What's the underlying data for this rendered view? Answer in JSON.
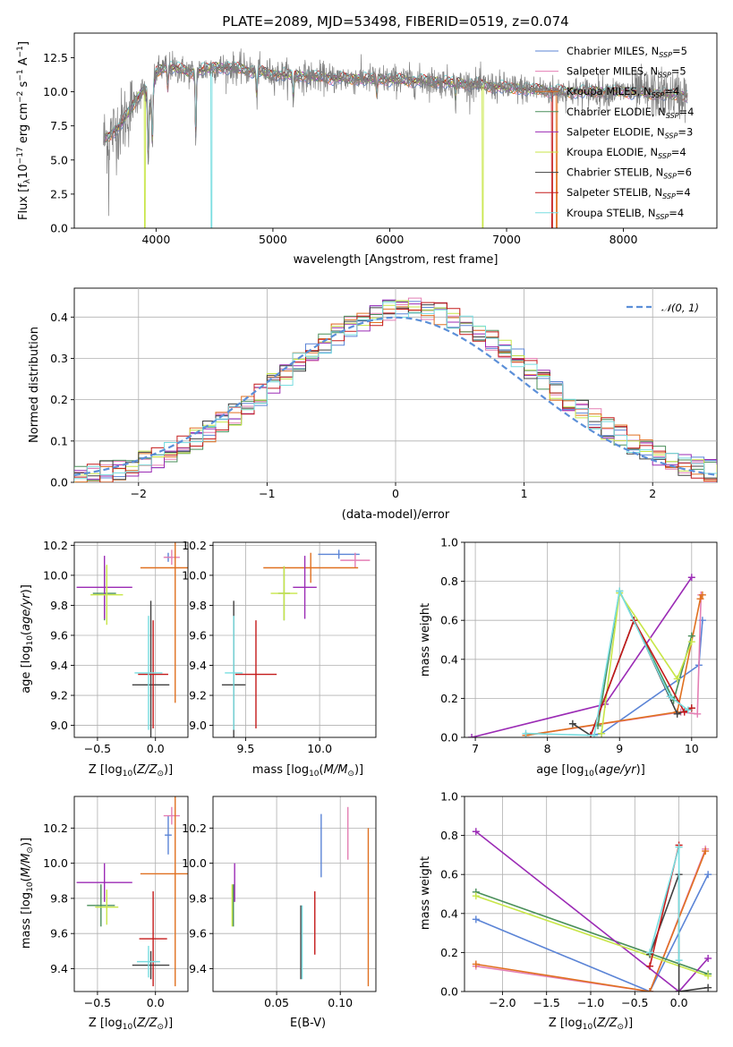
{
  "colors": {
    "chabrier_miles": "#5b84d6",
    "salpeter_miles": "#e47fb4",
    "kroupa_miles": "#e07020",
    "chabrier_elodie": "#4a8f5a",
    "salpeter_elodie": "#9b2bb5",
    "kroupa_elodie": "#c8e648",
    "chabrier_stelib": "#404040",
    "salpeter_stelib": "#c41a1a",
    "kroupa_stelib": "#78dde0",
    "data": "#7f7f7f",
    "normal": "#5b8fd8"
  },
  "chart_data": [
    {
      "type": "line",
      "title": "PLATE=2089, MJD=53498, FIBERID=0519, z=0.074",
      "xlabel": "wavelength [Angstrom, rest frame]",
      "ylabel": "Flux [f_λ 10^-17 erg cm^-2 s^-1 A^-1]",
      "xlim": [
        3300,
        8800
      ],
      "ylim": [
        0,
        14.3
      ],
      "xticks": [
        4000,
        5000,
        6000,
        7000,
        8000
      ],
      "yticks": [
        0.0,
        2.5,
        5.0,
        7.5,
        10.0,
        12.5
      ],
      "legend_position": "top-right",
      "series": [
        {
          "name": "Chabrier MILES, N_SSP=5",
          "key": "chabrier_miles"
        },
        {
          "name": "Salpeter MILES, N_SSP=5",
          "key": "salpeter_miles"
        },
        {
          "name": "Kroupa MILES, N_SSP=4",
          "key": "kroupa_miles"
        },
        {
          "name": "Chabrier ELODIE, N_SSP=4",
          "key": "chabrier_elodie"
        },
        {
          "name": "Salpeter ELODIE, N_SSP=3",
          "key": "salpeter_elodie"
        },
        {
          "name": "Kroupa ELODIE, N_SSP=4",
          "key": "kroupa_elodie"
        },
        {
          "name": "Chabrier STELIB, N_SSP=6",
          "key": "chabrier_stelib"
        },
        {
          "name": "Salpeter STELIB, N_SSP=4",
          "key": "salpeter_stelib"
        },
        {
          "name": "Kroupa STELIB, N_SSP=4",
          "key": "kroupa_stelib"
        }
      ],
      "spectrum_profile": {
        "x": [
          3550,
          3600,
          3700,
          3800,
          3900,
          3950,
          4000,
          4100,
          4300,
          4500,
          4700,
          5000,
          5500,
          6000,
          6500,
          7000,
          7500,
          8000,
          8400,
          8550
        ],
        "y": [
          6.5,
          6.8,
          7.6,
          9.0,
          10.3,
          9.0,
          11.4,
          11.9,
          11.4,
          11.8,
          11.7,
          11.3,
          11.0,
          10.9,
          10.7,
          10.3,
          10.0,
          10.0,
          9.8,
          9.7
        ]
      },
      "absorption_lines": [
        {
          "x": 3933,
          "drop": 5.0
        },
        {
          "x": 3968,
          "drop": 4.0
        },
        {
          "x": 4100,
          "drop": 1.8
        },
        {
          "x": 4340,
          "drop": 5.2
        },
        {
          "x": 4861,
          "drop": 2.0
        },
        {
          "x": 5175,
          "drop": 1.8
        },
        {
          "x": 5890,
          "drop": 1.2
        },
        {
          "x": 6563,
          "drop": 1.2
        }
      ],
      "model_dropouts": [
        {
          "x": 3905,
          "key": "kroupa_elodie"
        },
        {
          "x": 4475,
          "key": "kroupa_stelib"
        },
        {
          "x": 6795,
          "key": "kroupa_elodie"
        },
        {
          "x": 7390,
          "key": "salpeter_stelib"
        },
        {
          "x": 7430,
          "key": "kroupa_miles"
        }
      ]
    },
    {
      "type": "histogram",
      "xlabel": "(data-model)/error",
      "ylabel": "Normed distribution",
      "xlim": [
        -2.5,
        2.5
      ],
      "ylim": [
        0,
        0.47
      ],
      "xticks": [
        -2,
        -1,
        0,
        1,
        2
      ],
      "yticks": [
        0.0,
        0.1,
        0.2,
        0.3,
        0.4
      ],
      "bin_width": 0.1,
      "legend": "N(0,1)",
      "legend_position": "top-right"
    },
    {
      "type": "errorbar",
      "xlabel": "Z [log10(Z/Z_sun)]",
      "ylabel": "age [log10(age/yr)]",
      "xlim": [
        -0.7,
        0.28
      ],
      "ylim": [
        8.92,
        10.22
      ],
      "xticks": [
        -0.5,
        0.0
      ],
      "yticks": [
        9.0,
        9.2,
        9.4,
        9.6,
        9.8,
        10.0,
        10.2
      ],
      "points": [
        {
          "key": "chabrier_miles",
          "x": 0.11,
          "xerr": 0.03,
          "y": 10.12,
          "yerr": 0.03
        },
        {
          "key": "salpeter_miles",
          "x": 0.14,
          "xerr": 0.07,
          "y": 10.12,
          "yerr": 0.05
        },
        {
          "key": "kroupa_miles",
          "x": 0.17,
          "xerr": 0.3,
          "y": 10.05,
          "yerr": 0.9
        },
        {
          "key": "chabrier_elodie",
          "x": -0.44,
          "xerr": 0.1,
          "y": 9.88,
          "yerr": 0.18
        },
        {
          "key": "salpeter_elodie",
          "x": -0.44,
          "xerr": 0.24,
          "y": 9.92,
          "yerr": 0.21
        },
        {
          "key": "kroupa_elodie",
          "x": -0.42,
          "xerr": 0.14,
          "y": 9.87,
          "yerr": 0.2
        },
        {
          "key": "chabrier_stelib",
          "x": -0.04,
          "xerr": 0.16,
          "y": 9.27,
          "yerr": 0.56
        },
        {
          "key": "salpeter_stelib",
          "x": -0.02,
          "xerr": 0.13,
          "y": 9.34,
          "yerr": 0.36
        },
        {
          "key": "kroupa_stelib",
          "x": -0.06,
          "xerr": 0.12,
          "y": 9.35,
          "yerr": 0.38
        }
      ]
    },
    {
      "type": "errorbar",
      "xlabel": "mass [log10(M/M_sun)]",
      "ylabel": "",
      "xlim": [
        9.28,
        10.38
      ],
      "ylim": [
        8.92,
        10.22
      ],
      "xticks": [
        9.5,
        10.0
      ],
      "yticks": [
        9.0,
        9.2,
        9.4,
        9.6,
        9.8,
        10.0,
        10.2
      ],
      "points": [
        {
          "key": "chabrier_miles",
          "x": 10.13,
          "xerr": 0.14,
          "y": 10.14,
          "yerr": 0.03
        },
        {
          "key": "salpeter_miles",
          "x": 10.24,
          "xerr": 0.1,
          "y": 10.1,
          "yerr": 0.05
        },
        {
          "key": "kroupa_miles",
          "x": 9.94,
          "xerr": 0.32,
          "y": 10.05,
          "yerr": 0.1
        },
        {
          "key": "chabrier_elodie",
          "x": 9.76,
          "xerr": 0.04,
          "y": 9.88,
          "yerr": 0.18
        },
        {
          "key": "salpeter_elodie",
          "x": 9.9,
          "xerr": 0.08,
          "y": 9.92,
          "yerr": 0.21
        },
        {
          "key": "kroupa_elodie",
          "x": 9.76,
          "xerr": 0.09,
          "y": 9.88,
          "yerr": 0.18
        },
        {
          "key": "chabrier_stelib",
          "x": 9.42,
          "xerr": 0.08,
          "y": 9.27,
          "yerr": 0.56
        },
        {
          "key": "salpeter_stelib",
          "x": 9.57,
          "xerr": 0.14,
          "y": 9.34,
          "yerr": 0.36
        },
        {
          "key": "kroupa_stelib",
          "x": 9.42,
          "xerr": 0.06,
          "y": 9.35,
          "yerr": 0.38
        }
      ]
    },
    {
      "type": "line",
      "xlabel": "age [log10(age/yr)]",
      "ylabel": "mass weight",
      "xlim": [
        6.85,
        10.35
      ],
      "ylim": [
        0,
        1.0
      ],
      "xticks": [
        7,
        8,
        9,
        10
      ],
      "yticks": [
        0.0,
        0.2,
        0.4,
        0.6,
        0.8,
        1.0
      ],
      "grid": true,
      "series": [
        {
          "key": "chabrier_miles",
          "x": [
            8.6,
            8.75,
            10.1,
            10.15
          ],
          "y": [
            0.01,
            0.02,
            0.37,
            0.6
          ]
        },
        {
          "key": "salpeter_miles",
          "x": [
            7.7,
            9.85,
            10.08,
            10.13
          ],
          "y": [
            0.01,
            0.13,
            0.12,
            0.73
          ]
        },
        {
          "key": "kroupa_miles",
          "x": [
            7.7,
            9.8,
            10.12,
            10.15
          ],
          "y": [
            0.01,
            0.13,
            0.71,
            0.73
          ]
        },
        {
          "key": "chabrier_elodie",
          "x": [
            8.7,
            9.0,
            9.75,
            10.0
          ],
          "y": [
            0.06,
            0.75,
            0.19,
            0.52
          ]
        },
        {
          "key": "salpeter_elodie",
          "x": [
            6.95,
            8.8,
            10.0
          ],
          "y": [
            0.0,
            0.17,
            0.82
          ]
        },
        {
          "key": "kroupa_elodie",
          "x": [
            8.75,
            9.0,
            9.8,
            10.0
          ],
          "y": [
            0.02,
            0.74,
            0.3,
            0.49
          ]
        },
        {
          "key": "chabrier_stelib",
          "x": [
            8.35,
            8.6,
            9.2,
            9.8,
            10.0
          ],
          "y": [
            0.07,
            0.01,
            0.6,
            0.12,
            0.15
          ]
        },
        {
          "key": "salpeter_stelib",
          "x": [
            8.6,
            9.2,
            9.9,
            10.0
          ],
          "y": [
            0.01,
            0.6,
            0.13,
            0.15
          ]
        },
        {
          "key": "kroupa_stelib",
          "x": [
            7.7,
            8.65,
            9.0,
            9.7,
            9.95
          ],
          "y": [
            0.02,
            0.01,
            0.75,
            0.21,
            0.14
          ]
        }
      ]
    },
    {
      "type": "errorbar",
      "xlabel": "Z [log10(Z/Z_sun)]",
      "ylabel": "mass [log10(M/M_sun)]",
      "xlim": [
        -0.7,
        0.28
      ],
      "ylim": [
        9.27,
        10.38
      ],
      "xticks": [
        -0.5,
        0.0
      ],
      "yticks": [
        9.4,
        9.6,
        9.8,
        10.0,
        10.2
      ],
      "points": [
        {
          "key": "chabrier_miles",
          "x": 0.11,
          "xerr": 0.03,
          "y": 10.16,
          "yerr": 0.11
        },
        {
          "key": "salpeter_miles",
          "x": 0.14,
          "xerr": 0.07,
          "y": 10.27,
          "yerr": 0.05
        },
        {
          "key": "kroupa_miles",
          "x": 0.17,
          "xerr": 0.3,
          "y": 9.94,
          "yerr": 0.64
        },
        {
          "key": "chabrier_elodie",
          "x": -0.47,
          "xerr": 0.12,
          "y": 9.76,
          "yerr": 0.12
        },
        {
          "key": "salpeter_elodie",
          "x": -0.44,
          "xerr": 0.24,
          "y": 9.89,
          "yerr": 0.11
        },
        {
          "key": "kroupa_elodie",
          "x": -0.42,
          "xerr": 0.1,
          "y": 9.75,
          "yerr": 0.1
        },
        {
          "key": "chabrier_stelib",
          "x": -0.04,
          "xerr": 0.16,
          "y": 9.42,
          "yerr": 0.08
        },
        {
          "key": "salpeter_stelib",
          "x": -0.02,
          "xerr": 0.12,
          "y": 9.57,
          "yerr": 0.27
        },
        {
          "key": "kroupa_stelib",
          "x": -0.06,
          "xerr": 0.1,
          "y": 9.44,
          "yerr": 0.09
        }
      ]
    },
    {
      "type": "errorbar",
      "xlabel": "E(B-V)",
      "ylabel": "",
      "xlim": [
        0.0,
        0.128
      ],
      "ylim": [
        9.27,
        10.38
      ],
      "xticks": [
        0.05,
        0.1
      ],
      "yticks": [
        9.4,
        9.6,
        9.8,
        10.0,
        10.2
      ],
      "points": [
        {
          "key": "chabrier_miles",
          "x": 0.085,
          "xerr": 0,
          "y": 10.1,
          "yerr": 0.18
        },
        {
          "key": "salpeter_miles",
          "x": 0.106,
          "xerr": 0,
          "y": 10.17,
          "yerr": 0.15
        },
        {
          "key": "kroupa_miles",
          "x": 0.122,
          "xerr": 0,
          "y": 9.75,
          "yerr": 0.45
        },
        {
          "key": "chabrier_elodie",
          "x": 0.016,
          "xerr": 0,
          "y": 9.76,
          "yerr": 0.12
        },
        {
          "key": "salpeter_elodie",
          "x": 0.017,
          "xerr": 0,
          "y": 9.89,
          "yerr": 0.11
        },
        {
          "key": "kroupa_elodie",
          "x": 0.015,
          "xerr": 0,
          "y": 9.76,
          "yerr": 0.12
        },
        {
          "key": "chabrier_stelib",
          "x": 0.069,
          "xerr": 0,
          "y": 9.55,
          "yerr": 0.21
        },
        {
          "key": "salpeter_stelib",
          "x": 0.08,
          "xerr": 0,
          "y": 9.66,
          "yerr": 0.18
        },
        {
          "key": "kroupa_stelib",
          "x": 0.07,
          "xerr": 0,
          "y": 9.55,
          "yerr": 0.21
        }
      ]
    },
    {
      "type": "line",
      "xlabel": "Z [log10(Z/Z_sun)]",
      "ylabel": "mass weight",
      "xlim": [
        -2.43,
        0.43
      ],
      "ylim": [
        0,
        1.0
      ],
      "xticks": [
        -2.0,
        -1.5,
        -1.0,
        -0.5,
        0.0
      ],
      "yticks": [
        0.0,
        0.2,
        0.4,
        0.6,
        0.8,
        1.0
      ],
      "grid": true,
      "series": [
        {
          "key": "chabrier_miles",
          "x": [
            -2.3,
            -0.33,
            0.33
          ],
          "y": [
            0.37,
            0.0,
            0.6
          ]
        },
        {
          "key": "salpeter_miles",
          "x": [
            -2.3,
            -0.33,
            0.3
          ],
          "y": [
            0.13,
            0.0,
            0.73
          ]
        },
        {
          "key": "kroupa_miles",
          "x": [
            -2.3,
            -0.33,
            0.3
          ],
          "y": [
            0.14,
            0.0,
            0.72
          ]
        },
        {
          "key": "chabrier_elodie",
          "x": [
            -2.3,
            0.33
          ],
          "y": [
            0.51,
            0.09
          ]
        },
        {
          "key": "salpeter_elodie",
          "x": [
            -2.3,
            0.0,
            0.33
          ],
          "y": [
            0.82,
            0.0,
            0.17
          ]
        },
        {
          "key": "kroupa_elodie",
          "x": [
            -2.3,
            0.33
          ],
          "y": [
            0.49,
            0.08
          ]
        },
        {
          "key": "chabrier_stelib",
          "x": [
            -0.33,
            0.0,
            0.0,
            0.33
          ],
          "y": [
            0.19,
            0.6,
            0.0,
            0.02
          ]
        },
        {
          "key": "salpeter_stelib",
          "x": [
            -0.33,
            0.0
          ],
          "y": [
            0.13,
            0.75
          ]
        },
        {
          "key": "kroupa_stelib",
          "x": [
            -0.33,
            0.0,
            0.0
          ],
          "y": [
            0.2,
            0.74,
            0.16
          ]
        }
      ]
    }
  ]
}
